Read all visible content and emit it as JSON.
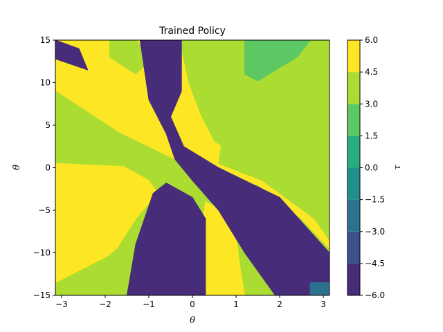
{
  "chart_data": {
    "type": "heatmap",
    "title": "Trained Policy",
    "xlabel": "θ",
    "ylabel": "θ̇",
    "colorbar_label": "τ",
    "xlim": [
      -3.14159,
      3.14159
    ],
    "ylim": [
      -15,
      15
    ],
    "x_ticks": [
      -3,
      -2,
      -1,
      0,
      1,
      2,
      3
    ],
    "x_tick_labels": [
      "−3",
      "−2",
      "−1",
      "0",
      "1",
      "2",
      "3"
    ],
    "y_ticks": [
      -15,
      -10,
      -5,
      0,
      5,
      10,
      15
    ],
    "y_tick_labels": [
      "−15",
      "−10",
      "−5",
      "0",
      "5",
      "10",
      "15"
    ],
    "grid": false,
    "levels": [
      -6.0,
      -4.5,
      -3.0,
      -1.5,
      0.0,
      1.5,
      3.0,
      4.5,
      6.0
    ],
    "colorbar_tick_labels": [
      "−6.0",
      "−4.5",
      "−3.0",
      "−1.5",
      "0.0",
      "1.5",
      "3.0",
      "4.5",
      "6.0"
    ],
    "colormap": [
      "#472c7a",
      "#3b528b",
      "#2c728e",
      "#21908d",
      "#27ad81",
      "#5cc863",
      "#aadc32",
      "#fde725"
    ],
    "regions": [
      {
        "name": "positive-saturated-band",
        "value": 6.0,
        "polygons": [
          [
            [
              -3.14,
              15
            ],
            [
              -0.3,
              15
            ],
            [
              -0.1,
              10
            ],
            [
              0.2,
              6
            ],
            [
              0.5,
              3
            ],
            [
              1.2,
              1.2
            ],
            [
              2.0,
              -0.8
            ],
            [
              2.6,
              -3
            ],
            [
              3.14,
              -7
            ],
            [
              3.14,
              -9.5
            ],
            [
              2.5,
              -6
            ],
            [
              1.5,
              -2
            ],
            [
              0.6,
              -1
            ],
            [
              0.2,
              -0.5
            ],
            [
              -0.6,
              1.5
            ],
            [
              -1.6,
              4
            ],
            [
              -3.14,
              8
            ]
          ],
          [
            [
              -3.14,
              1
            ],
            [
              -1.6,
              0.2
            ],
            [
              -1.0,
              -1.5
            ],
            [
              -0.8,
              -3
            ],
            [
              -1.3,
              -6
            ],
            [
              -1.8,
              -10
            ],
            [
              -3.14,
              -13.5
            ]
          ],
          [
            [
              0.3,
              -4
            ],
            [
              0.7,
              -5
            ],
            [
              1.0,
              -8
            ],
            [
              1.1,
              -12
            ],
            [
              1.2,
              -15
            ],
            [
              0.1,
              -15
            ],
            [
              0.1,
              -10
            ]
          ]
        ]
      },
      {
        "name": "positive-moderate-region",
        "value": 4.5,
        "polygons": [
          [
            [
              1.2,
              15
            ],
            [
              3.14,
              15
            ],
            [
              3.14,
              -8.5
            ],
            [
              2.8,
              -6
            ],
            [
              1.6,
              -1.5
            ],
            [
              0.6,
              0.5
            ],
            [
              0.7,
              4
            ],
            [
              0.8,
              9
            ]
          ],
          [
            [
              -3.14,
              9
            ],
            [
              -1.2,
              2.5
            ],
            [
              -1.5,
              0.2
            ],
            [
              -3.14,
              0.6
            ]
          ],
          [
            [
              -1.9,
              15
            ],
            [
              -1.3,
              15
            ],
            [
              -0.9,
              13
            ],
            [
              -1.3,
              11
            ],
            [
              -1.9,
              13
            ]
          ],
          [
            [
              -2.2,
              -15
            ],
            [
              -1.5,
              -15
            ],
            [
              -1.2,
              -10
            ],
            [
              -1.6,
              -9
            ],
            [
              -2.3,
              -12
            ]
          ]
        ]
      },
      {
        "name": "negative-saturated-band",
        "value": -6.0,
        "polygons": [
          [
            [
              -1.2,
              15
            ],
            [
              -0.25,
              15
            ],
            [
              -0.25,
              9
            ],
            [
              -0.5,
              6
            ],
            [
              -0.2,
              2.5
            ],
            [
              0.6,
              0
            ],
            [
              1.2,
              -1.5
            ],
            [
              2.0,
              -3.5
            ],
            [
              3.14,
              -10
            ],
            [
              3.14,
              -15
            ],
            [
              1.9,
              -15
            ],
            [
              1.2,
              -10
            ],
            [
              0.6,
              -5
            ],
            [
              0,
              -1.5
            ],
            [
              -0.4,
              1
            ],
            [
              -0.6,
              4
            ],
            [
              -1.0,
              8
            ]
          ],
          [
            [
              -1.5,
              -15
            ],
            [
              0.3,
              -15
            ],
            [
              0.3,
              -6
            ],
            [
              0,
              -3.5
            ],
            [
              -0.6,
              -1.8
            ],
            [
              -0.9,
              -3
            ],
            [
              -1.1,
              -6
            ],
            [
              -1.3,
              -9
            ]
          ],
          [
            [
              -3.14,
              15
            ],
            [
              -2.6,
              14
            ],
            [
              -2.4,
              11.5
            ],
            [
              -3.14,
              12.8
            ]
          ]
        ]
      },
      {
        "name": "positive-patch-top-right",
        "value": 3.0,
        "polygons": [
          [
            [
              1.2,
              15
            ],
            [
              2.7,
              15
            ],
            [
              2.4,
              13
            ],
            [
              1.5,
              10.2
            ],
            [
              1.2,
              11
            ]
          ]
        ]
      },
      {
        "name": "negative-patch-bottom-right",
        "value": -1.5,
        "polygons": [
          [
            [
              2.7,
              -13.5
            ],
            [
              3.14,
              -13.5
            ],
            [
              3.14,
              -15
            ],
            [
              2.7,
              -15
            ]
          ]
        ]
      }
    ]
  }
}
